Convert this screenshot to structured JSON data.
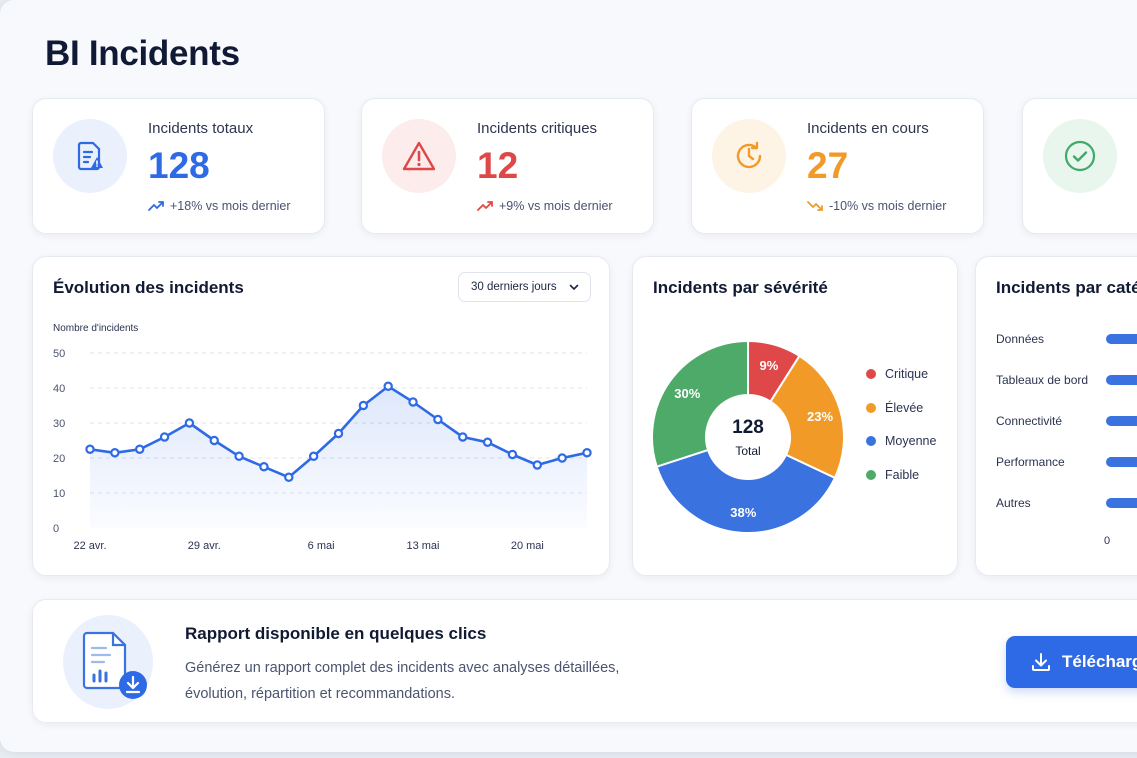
{
  "page": {
    "title": "BI Incidents"
  },
  "kpis": [
    {
      "label": "Incidents totaux",
      "value": "128",
      "trend": "+18% vs mois dernier",
      "color": "#2f6ae6",
      "icon": "document-alert-icon"
    },
    {
      "label": "Incidents critiques",
      "value": "12",
      "trend": "+9% vs mois dernier",
      "color": "#df4848",
      "icon": "warning-triangle-icon"
    },
    {
      "label": "Incidents en cours",
      "value": "27",
      "trend": "-10% vs mois dernier",
      "color": "#f29a27",
      "icon": "clock-refresh-icon"
    },
    {
      "label": "",
      "value": "",
      "trend": "",
      "color": "#3fa86a",
      "icon": "check-circle-icon"
    }
  ],
  "evolution": {
    "title": "Évolution des incidents",
    "period": "30 derniers jours",
    "ylabel": "Nombre d'incidents"
  },
  "severity": {
    "title": "Incidents par sévérité",
    "total_value": "128",
    "total_label": "Total"
  },
  "categories": {
    "title": "Incidents par caté",
    "items": [
      "Données",
      "Tableaux de bord",
      "Connectivité",
      "Performance",
      "Autres"
    ],
    "axis_start": "0"
  },
  "report": {
    "title": "Rapport disponible en quelques clics",
    "description_line1": "Générez un rapport complet des incidents avec analyses détaillées,",
    "description_line2": "évolution, répartition et recommandations.",
    "button_label": "Télécharg"
  },
  "chart_data": [
    {
      "type": "line",
      "title": "Évolution des incidents",
      "ylabel": "Nombre d'incidents",
      "ylim": [
        0,
        50
      ],
      "yticks": [
        0,
        10,
        20,
        30,
        40,
        50
      ],
      "xtick_labels": [
        "22 avr.",
        "29 avr.",
        "6 mai",
        "13 mai",
        "20 mai"
      ],
      "xtick_index": [
        0,
        4.6,
        9.3,
        13.4,
        17.6
      ],
      "values": [
        22.5,
        21.5,
        22.5,
        26,
        30,
        25,
        20.5,
        17.5,
        14.5,
        20.5,
        27,
        35,
        40.5,
        36,
        31,
        26,
        24.5,
        21,
        18,
        20,
        21.5
      ],
      "color": "#2f6ae6",
      "grid": true
    },
    {
      "type": "pie",
      "title": "Incidents par sévérité",
      "labels": [
        "Critique",
        "Élevée",
        "Moyenne",
        "Faible"
      ],
      "values": [
        9,
        23,
        38,
        30
      ],
      "value_labels": [
        "9%",
        "23%",
        "38%",
        "30%"
      ],
      "colors": [
        "#df4848",
        "#f29a27",
        "#3a72e0",
        "#4daa68"
      ]
    }
  ]
}
